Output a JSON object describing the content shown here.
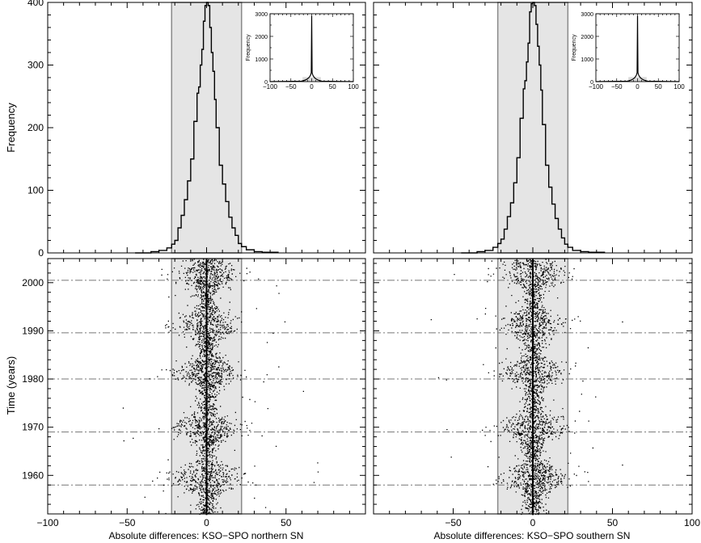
{
  "figure": {
    "x_axis_label_left": "Absolute differences: KSO−SPO northern SN",
    "x_axis_label_right": "Absolute differences: KSO−SPO southern SN"
  },
  "chart_data": [
    {
      "id": "hist-north",
      "type": "step-histogram",
      "xlim": [
        -100,
        100
      ],
      "ylim": [
        0,
        400
      ],
      "ylabel": "Frequency",
      "y_ticks": [
        0,
        100,
        200,
        300,
        400
      ],
      "shaded_band": [
        -22,
        22
      ],
      "x": [
        -45,
        -35,
        -30,
        -25,
        -22,
        -20,
        -18,
        -16,
        -14,
        -12,
        -10,
        -8,
        -6,
        -5,
        -4,
        -3,
        -2,
        -1,
        0,
        1,
        2,
        3,
        4,
        5,
        6,
        8,
        10,
        12,
        14,
        16,
        18,
        20,
        22,
        25,
        30,
        35,
        45
      ],
      "values": [
        0,
        2,
        4,
        8,
        14,
        20,
        40,
        60,
        85,
        115,
        150,
        210,
        255,
        265,
        300,
        325,
        370,
        395,
        400,
        395,
        360,
        320,
        290,
        245,
        200,
        140,
        110,
        82,
        57,
        40,
        28,
        15,
        10,
        5,
        2,
        1,
        0
      ],
      "inset": {
        "xlim": [
          -100,
          100
        ],
        "ylim": [
          0,
          3000
        ],
        "ylabel": "Frequency",
        "x_ticks": [
          -100,
          -50,
          0,
          50,
          100
        ],
        "y_ticks": [
          0,
          1000,
          2000,
          3000
        ],
        "shaded_band": [
          -22,
          22
        ],
        "peak": 2900
      }
    },
    {
      "id": "hist-south",
      "type": "step-histogram",
      "xlim": [
        -100,
        100
      ],
      "ylim": [
        0,
        400
      ],
      "shaded_band": [
        -22,
        22
      ],
      "x": [
        -45,
        -35,
        -30,
        -25,
        -22,
        -20,
        -18,
        -16,
        -14,
        -12,
        -10,
        -8,
        -6,
        -5,
        -4,
        -3,
        -2,
        -1,
        0,
        1,
        2,
        3,
        4,
        5,
        6,
        8,
        10,
        12,
        14,
        16,
        18,
        20,
        22,
        25,
        30,
        35,
        45
      ],
      "values": [
        0,
        2,
        4,
        9,
        15,
        22,
        38,
        58,
        80,
        112,
        152,
        215,
        262,
        275,
        305,
        335,
        385,
        398,
        400,
        395,
        365,
        330,
        300,
        260,
        205,
        140,
        105,
        78,
        55,
        38,
        24,
        14,
        9,
        4,
        2,
        1,
        0
      ],
      "inset": {
        "xlim": [
          -100,
          100
        ],
        "ylim": [
          0,
          3000
        ],
        "ylabel": "Frequency",
        "x_ticks": [
          -100,
          -50,
          0,
          50,
          100
        ],
        "y_ticks": [
          0,
          1000,
          2000,
          3000
        ],
        "shaded_band": [
          -22,
          22
        ],
        "peak": 2900
      }
    },
    {
      "id": "scatter-north",
      "type": "scatter",
      "xlim": [
        -100,
        100
      ],
      "ylim": [
        1952,
        2005
      ],
      "ylabel": "Time (years)",
      "x_ticks": [
        -100,
        -50,
        0,
        50
      ],
      "y_ticks": [
        1960,
        1970,
        1980,
        1990,
        2000
      ],
      "shaded_band": [
        -22,
        22
      ],
      "cycle_minima": [
        1958.0,
        1969.0,
        1980.0,
        1989.6,
        2000.5
      ],
      "cycle_maxima": [
        1959.5,
        1970.0,
        1981.5,
        1991.5,
        2002.0
      ],
      "n_points": 4200
    },
    {
      "id": "scatter-south",
      "type": "scatter",
      "xlim": [
        -100,
        100
      ],
      "ylim": [
        1952,
        2005
      ],
      "x_ticks": [
        -50,
        0,
        50,
        100
      ],
      "shaded_band": [
        -22,
        22
      ],
      "cycle_minima": [
        1958.0,
        1969.0,
        1980.0,
        1989.6,
        2000.5
      ],
      "cycle_maxima": [
        1959.5,
        1970.0,
        1981.5,
        1991.5,
        2002.0
      ],
      "n_points": 4200
    }
  ]
}
